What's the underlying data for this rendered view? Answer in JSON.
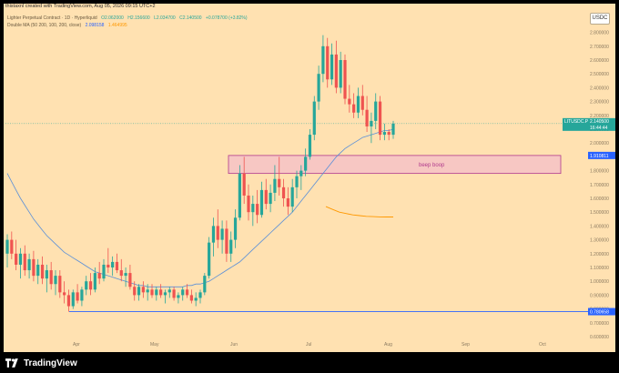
{
  "header": {
    "published": "thistaxnl created with TradingView.com, Aug 05, 2026 09:15 UTC+2"
  },
  "legend": {
    "symbol": "Lighter Perpetual Contract · 1D · Hyperliquid",
    "open": "O2.062000",
    "high": "H2.156600",
    "low": "L2.034700",
    "close": "C2.140500",
    "change": "+0.078700 (+3.82%)",
    "ma_label": "Double MA (50 200, 100, 200, close)",
    "ma1": "2.098158",
    "ma2": "1.464995"
  },
  "currency_button": "USDC",
  "zone_label": "beep boop",
  "price_tags": {
    "current_symbol": "LITUSDC.P",
    "current_price": "2.140500",
    "countdown": "16:44:44",
    "zone_top": "1.910811",
    "support": "0.780658"
  },
  "footer": {
    "brand": "TradingView"
  },
  "colors": {
    "background": "#ffe1b1",
    "up": "#26a69a",
    "down": "#ef5350",
    "ma_fast": "#5a8fd8",
    "ma_slow": "#ff9800",
    "zone_fill": "#f6c2c7",
    "zone_border": "#b03a8c",
    "support_line": "#2962ff"
  },
  "chart_data": {
    "type": "candlestick",
    "y_axis_ticks": [
      "2.800000",
      "2.700000",
      "2.600000",
      "2.500000",
      "2.400000",
      "2.300000",
      "2.200000",
      "2.100000",
      "2.000000",
      "1.900000",
      "1.800000",
      "1.700000",
      "1.600000",
      "1.500000",
      "1.400000",
      "1.300000",
      "1.200000",
      "1.100000",
      "1.000000",
      "0.900000",
      "0.800000",
      "0.700000",
      "0.600000"
    ],
    "x_axis_ticks": [
      "Apr",
      "May",
      "Jun",
      "Jul",
      "Aug",
      "Sep",
      "Oct"
    ],
    "ylim": [
      0.6,
      2.85
    ],
    "candles": [
      [
        1.2,
        1.34,
        1.1,
        1.3
      ],
      [
        1.3,
        1.36,
        1.16,
        1.2
      ],
      [
        1.2,
        1.3,
        1.08,
        1.12
      ],
      [
        1.12,
        1.24,
        1.02,
        1.2
      ],
      [
        1.2,
        1.26,
        1.04,
        1.08
      ],
      [
        1.08,
        1.2,
        1.02,
        1.16
      ],
      [
        1.16,
        1.22,
        1.0,
        1.04
      ],
      [
        1.04,
        1.16,
        0.98,
        1.12
      ],
      [
        1.12,
        1.18,
        0.98,
        1.02
      ],
      [
        1.02,
        1.12,
        0.92,
        1.08
      ],
      [
        1.08,
        1.14,
        0.94,
        0.98
      ],
      [
        0.98,
        1.08,
        0.9,
        1.04
      ],
      [
        1.04,
        1.08,
        0.88,
        0.92
      ],
      [
        0.92,
        1.0,
        0.84,
        0.9
      ],
      [
        0.9,
        0.94,
        0.78,
        0.82
      ],
      [
        0.82,
        0.94,
        0.8,
        0.92
      ],
      [
        0.92,
        0.98,
        0.84,
        0.86
      ],
      [
        0.86,
        0.96,
        0.82,
        0.94
      ],
      [
        0.94,
        1.04,
        0.9,
        1.0
      ],
      [
        1.0,
        1.06,
        0.9,
        0.94
      ],
      [
        0.94,
        1.1,
        0.92,
        1.06
      ],
      [
        1.06,
        1.14,
        0.98,
        1.02
      ],
      [
        1.02,
        1.16,
        1.0,
        1.12
      ],
      [
        1.12,
        1.24,
        1.06,
        1.1
      ],
      [
        1.1,
        1.18,
        1.04,
        1.14
      ],
      [
        1.14,
        1.2,
        1.06,
        1.08
      ],
      [
        1.08,
        1.16,
        1.0,
        1.04
      ],
      [
        1.04,
        1.1,
        0.96,
        1.06
      ],
      [
        1.06,
        1.12,
        0.94,
        0.96
      ],
      [
        0.96,
        1.0,
        0.86,
        0.9
      ],
      [
        0.9,
        0.98,
        0.86,
        0.96
      ],
      [
        0.96,
        1.0,
        0.88,
        0.92
      ],
      [
        0.92,
        0.98,
        0.86,
        0.94
      ],
      [
        0.94,
        0.98,
        0.88,
        0.9
      ],
      [
        0.9,
        0.96,
        0.86,
        0.94
      ],
      [
        0.94,
        0.98,
        0.88,
        0.9
      ],
      [
        0.9,
        0.94,
        0.84,
        0.92
      ],
      [
        0.92,
        0.96,
        0.88,
        0.94
      ],
      [
        0.94,
        0.96,
        0.86,
        0.88
      ],
      [
        0.88,
        0.92,
        0.84,
        0.9
      ],
      [
        0.9,
        0.96,
        0.86,
        0.94
      ],
      [
        0.94,
        0.98,
        0.88,
        0.9
      ],
      [
        0.9,
        0.94,
        0.84,
        0.86
      ],
      [
        0.86,
        0.92,
        0.82,
        0.88
      ],
      [
        0.88,
        0.94,
        0.84,
        0.92
      ],
      [
        0.92,
        1.06,
        0.9,
        1.04
      ],
      [
        1.04,
        1.32,
        1.02,
        1.28
      ],
      [
        1.28,
        1.46,
        1.18,
        1.4
      ],
      [
        1.4,
        1.52,
        1.24,
        1.3
      ],
      [
        1.3,
        1.44,
        1.2,
        1.38
      ],
      [
        1.38,
        1.44,
        1.14,
        1.2
      ],
      [
        1.2,
        1.36,
        1.14,
        1.3
      ],
      [
        1.3,
        1.52,
        1.24,
        1.46
      ],
      [
        1.46,
        1.84,
        1.44,
        1.78
      ],
      [
        1.78,
        1.9,
        1.56,
        1.62
      ],
      [
        1.62,
        1.7,
        1.44,
        1.5
      ],
      [
        1.5,
        1.62,
        1.4,
        1.56
      ],
      [
        1.56,
        1.66,
        1.42,
        1.48
      ],
      [
        1.48,
        1.72,
        1.46,
        1.66
      ],
      [
        1.66,
        1.74,
        1.52,
        1.56
      ],
      [
        1.56,
        1.7,
        1.5,
        1.64
      ],
      [
        1.64,
        1.84,
        1.58,
        1.74
      ],
      [
        1.74,
        1.9,
        1.62,
        1.68
      ],
      [
        1.68,
        1.74,
        1.54,
        1.6
      ],
      [
        1.6,
        1.68,
        1.48,
        1.54
      ],
      [
        1.54,
        1.74,
        1.5,
        1.68
      ],
      [
        1.68,
        1.8,
        1.6,
        1.76
      ],
      [
        1.76,
        1.84,
        1.66,
        1.8
      ],
      [
        1.8,
        1.96,
        1.76,
        1.9
      ],
      [
        1.9,
        2.1,
        1.88,
        2.06
      ],
      [
        2.06,
        2.34,
        2.02,
        2.3
      ],
      [
        2.3,
        2.56,
        2.24,
        2.5
      ],
      [
        2.5,
        2.78,
        2.44,
        2.7
      ],
      [
        2.7,
        2.76,
        2.4,
        2.46
      ],
      [
        2.46,
        2.72,
        2.42,
        2.64
      ],
      [
        2.64,
        2.74,
        2.36,
        2.4
      ],
      [
        2.4,
        2.66,
        2.36,
        2.6
      ],
      [
        2.6,
        2.64,
        2.28,
        2.32
      ],
      [
        2.32,
        2.42,
        2.22,
        2.28
      ],
      [
        2.28,
        2.36,
        2.18,
        2.22
      ],
      [
        2.22,
        2.4,
        2.18,
        2.34
      ],
      [
        2.34,
        2.42,
        2.2,
        2.24
      ],
      [
        2.24,
        2.34,
        2.08,
        2.12
      ],
      [
        2.12,
        2.22,
        2.0,
        2.16
      ],
      [
        2.16,
        2.36,
        2.1,
        2.3
      ],
      [
        2.3,
        2.34,
        2.02,
        2.06
      ],
      [
        2.06,
        2.14,
        2.02,
        2.08
      ],
      [
        2.08,
        2.1,
        2.02,
        2.06
      ],
      [
        2.06,
        2.16,
        2.03,
        2.14
      ]
    ],
    "ma_fast": [
      1.78,
      1.72,
      1.66,
      1.6,
      1.55,
      1.5,
      1.45,
      1.41,
      1.37,
      1.33,
      1.3,
      1.27,
      1.24,
      1.21,
      1.19,
      1.17,
      1.15,
      1.13,
      1.11,
      1.09,
      1.07,
      1.06,
      1.05,
      1.04,
      1.03,
      1.02,
      1.01,
      1.0,
      0.99,
      0.98,
      0.97,
      0.97,
      0.96,
      0.96,
      0.96,
      0.96,
      0.96,
      0.96,
      0.96,
      0.96,
      0.96,
      0.97,
      0.97,
      0.98,
      0.98,
      0.99,
      1.0,
      1.02,
      1.04,
      1.06,
      1.08,
      1.1,
      1.12,
      1.14,
      1.17,
      1.2,
      1.23,
      1.26,
      1.29,
      1.32,
      1.35,
      1.38,
      1.41,
      1.44,
      1.47,
      1.5,
      1.54,
      1.58,
      1.62,
      1.66,
      1.7,
      1.74,
      1.78,
      1.82,
      1.86,
      1.9,
      1.93,
      1.96,
      1.98,
      2.0,
      2.02,
      2.04,
      2.05,
      2.06,
      2.07,
      2.08,
      2.09,
      2.09,
      2.1
    ],
    "ma_slow": [
      1.54,
      1.52,
      1.5,
      1.49,
      1.48,
      1.475,
      1.47,
      1.468,
      1.466,
      1.465,
      1.465
    ],
    "zone": {
      "top": 1.91,
      "bottom": 1.78
    },
    "support": 0.780658,
    "current_price": 2.1405
  }
}
